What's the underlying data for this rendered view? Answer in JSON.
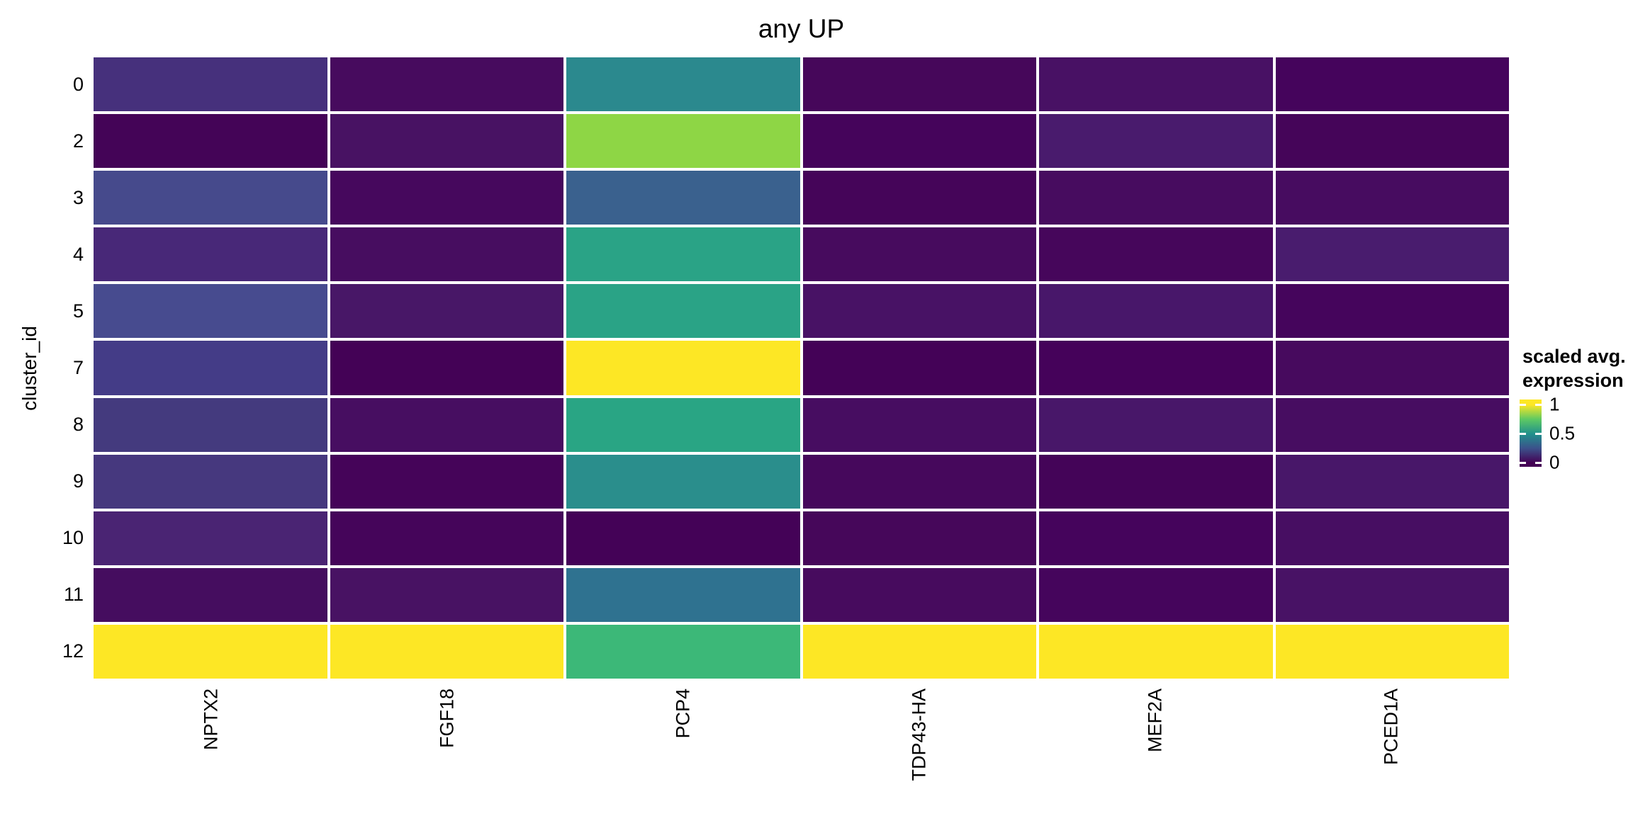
{
  "title": "any UP",
  "y_axis": {
    "label": "cluster_id",
    "tick_labels": [
      "0",
      "2",
      "3",
      "4",
      "5",
      "7",
      "8",
      "9",
      "10",
      "11",
      "12"
    ]
  },
  "x_axis": {
    "tick_labels": [
      "NPTX2",
      "FGF18",
      "PCP4",
      "TDP43-HA",
      "MEF2A",
      "PCED1A"
    ]
  },
  "legend": {
    "title_line1": "scaled avg.",
    "title_line2": "expression",
    "tick_labels": [
      "1",
      "0.5",
      "0"
    ],
    "tick_values": [
      1,
      0.5,
      0
    ],
    "bar_range": [
      -0.07,
      1.09
    ],
    "viridis_stops": [
      "#440154",
      "#3b528b",
      "#21918c",
      "#5ec962",
      "#fde725"
    ]
  },
  "chart_data": {
    "type": "heatmap",
    "title": "any UP",
    "xlabel": "",
    "ylabel": "cluster_id",
    "legend_title": "scaled avg. expression",
    "value_scale": [
      0,
      1
    ],
    "columns": [
      "NPTX2",
      "FGF18",
      "PCP4",
      "TDP43-HA",
      "MEF2A",
      "PCED1A"
    ],
    "rows": [
      "0",
      "2",
      "3",
      "4",
      "5",
      "7",
      "8",
      "9",
      "10",
      "11",
      "12"
    ],
    "values": [
      [
        0.15,
        0.05,
        0.47,
        0.03,
        0.07,
        0.02
      ],
      [
        0.01,
        0.07,
        0.8,
        0.02,
        0.1,
        0.02
      ],
      [
        0.23,
        0.04,
        0.33,
        0.02,
        0.05,
        0.05
      ],
      [
        0.12,
        0.06,
        0.57,
        0.05,
        0.03,
        0.1
      ],
      [
        0.24,
        0.08,
        0.57,
        0.07,
        0.09,
        0.03
      ],
      [
        0.2,
        0.01,
        1.0,
        0.01,
        0.01,
        0.05
      ],
      [
        0.18,
        0.06,
        0.58,
        0.06,
        0.09,
        0.06
      ],
      [
        0.17,
        0.02,
        0.49,
        0.04,
        0.02,
        0.09
      ],
      [
        0.11,
        0.03,
        0.01,
        0.03,
        0.02,
        0.06
      ],
      [
        0.04,
        0.07,
        0.4,
        0.05,
        0.03,
        0.07
      ],
      [
        1.0,
        1.0,
        0.65,
        1.0,
        1.0,
        1.0
      ]
    ],
    "cell_colors": [
      [
        "#46307c",
        "#470b5e",
        "#2b898e",
        "#46075a",
        "#481164",
        "#45045c"
      ],
      [
        "#440457",
        "#481263",
        "#8ed645",
        "#45045b",
        "#491b6d",
        "#450559"
      ],
      [
        "#464a8c",
        "#46085d",
        "#3a618e",
        "#450559",
        "#470c5f",
        "#470c60"
      ],
      [
        "#482878",
        "#470d60",
        "#2aa386",
        "#470b5e",
        "#46065b",
        "#491c6e"
      ],
      [
        "#474b8f",
        "#481767",
        "#2aa386",
        "#481265",
        "#48176a",
        "#45055c"
      ],
      [
        "#443c87",
        "#440256",
        "#fde725",
        "#440257",
        "#45025a",
        "#470a5e"
      ],
      [
        "#443a7e",
        "#470e61",
        "#29a584",
        "#470d61",
        "#481769",
        "#470d61"
      ],
      [
        "#46387e",
        "#450459",
        "#2a8e8c",
        "#46085c",
        "#440458",
        "#481769"
      ],
      [
        "#4a2473",
        "#45055a",
        "#440257",
        "#46075a",
        "#45045c",
        "#470e62"
      ],
      [
        "#450d5f",
        "#481263",
        "#2f7290",
        "#470b5e",
        "#45055c",
        "#481265"
      ],
      [
        "#fde725",
        "#fde725",
        "#3cb878",
        "#fde725",
        "#fde725",
        "#fde725"
      ]
    ]
  }
}
